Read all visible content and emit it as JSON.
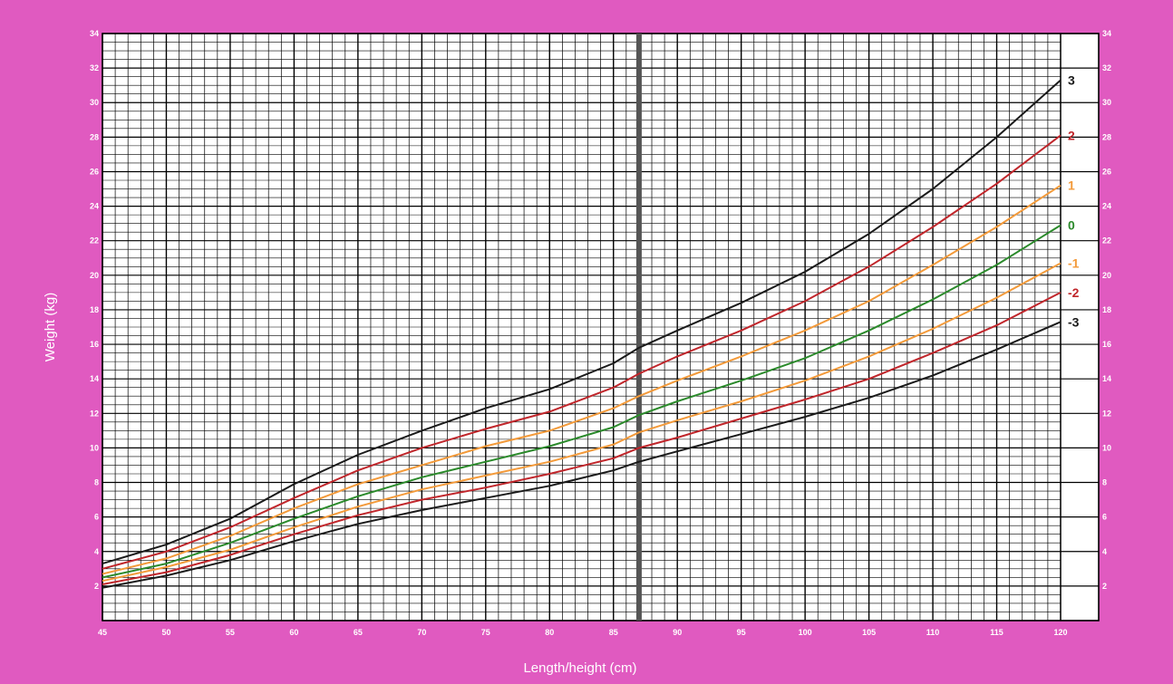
{
  "colors": {
    "background": "#e05ac0",
    "grid": "#000000",
    "divider": "#555555",
    "z3": "#1a1a1a",
    "z2": "#c0262b",
    "z1": "#f39a3a",
    "z0": "#2b8a2b"
  },
  "chart_data": {
    "type": "line",
    "title": "",
    "xlabel": "Length/height (cm)",
    "ylabel": "Weight (kg)",
    "xlim": [
      45,
      120
    ],
    "ylim": [
      0,
      34
    ],
    "x_ticks": [
      "45",
      "50",
      "55",
      "60",
      "65",
      "70",
      "75",
      "80",
      "85",
      "90",
      "95",
      "100",
      "105",
      "110",
      "115",
      "120"
    ],
    "y_ticks": [
      "2",
      "4",
      "6",
      "8",
      "10",
      "12",
      "14",
      "16",
      "18",
      "20",
      "22",
      "24",
      "26",
      "28",
      "30",
      "32",
      "34"
    ],
    "grid": true,
    "divider_x": 87,
    "x": [
      45,
      50,
      55,
      60,
      65,
      70,
      75,
      80,
      85,
      87,
      90,
      95,
      100,
      105,
      110,
      115,
      120
    ],
    "series": [
      {
        "name": "3",
        "color": "#1a1a1a",
        "values": [
          3.3,
          4.4,
          5.9,
          7.9,
          9.6,
          11.0,
          12.3,
          13.4,
          14.9,
          15.8,
          16.8,
          18.4,
          20.2,
          22.4,
          25.0,
          28.0,
          31.3
        ]
      },
      {
        "name": "2",
        "color": "#c0262b",
        "values": [
          3.0,
          4.0,
          5.4,
          7.1,
          8.7,
          10.0,
          11.1,
          12.1,
          13.5,
          14.3,
          15.3,
          16.8,
          18.5,
          20.5,
          22.8,
          25.3,
          28.1
        ]
      },
      {
        "name": "1",
        "color": "#f39a3a",
        "values": [
          2.7,
          3.6,
          4.9,
          6.5,
          7.9,
          9.0,
          10.1,
          11.0,
          12.3,
          13.0,
          13.9,
          15.3,
          16.8,
          18.5,
          20.6,
          22.8,
          25.2
        ]
      },
      {
        "name": "0",
        "color": "#2b8a2b",
        "values": [
          2.5,
          3.3,
          4.5,
          5.9,
          7.2,
          8.3,
          9.2,
          10.1,
          11.2,
          11.9,
          12.7,
          13.9,
          15.2,
          16.8,
          18.6,
          20.6,
          22.9
        ]
      },
      {
        "name": "-1",
        "color": "#f39a3a",
        "values": [
          2.3,
          3.1,
          4.1,
          5.4,
          6.6,
          7.6,
          8.4,
          9.2,
          10.2,
          10.9,
          11.6,
          12.7,
          13.9,
          15.3,
          16.9,
          18.7,
          20.7
        ]
      },
      {
        "name": "-2",
        "color": "#c0262b",
        "values": [
          2.1,
          2.8,
          3.8,
          5.0,
          6.1,
          7.0,
          7.7,
          8.5,
          9.4,
          10.0,
          10.6,
          11.7,
          12.8,
          14.0,
          15.5,
          17.1,
          19.0
        ]
      },
      {
        "name": "-3",
        "color": "#1a1a1a",
        "values": [
          1.9,
          2.6,
          3.5,
          4.6,
          5.6,
          6.4,
          7.1,
          7.8,
          8.7,
          9.2,
          9.8,
          10.8,
          11.8,
          12.9,
          14.2,
          15.7,
          17.3
        ]
      }
    ]
  }
}
